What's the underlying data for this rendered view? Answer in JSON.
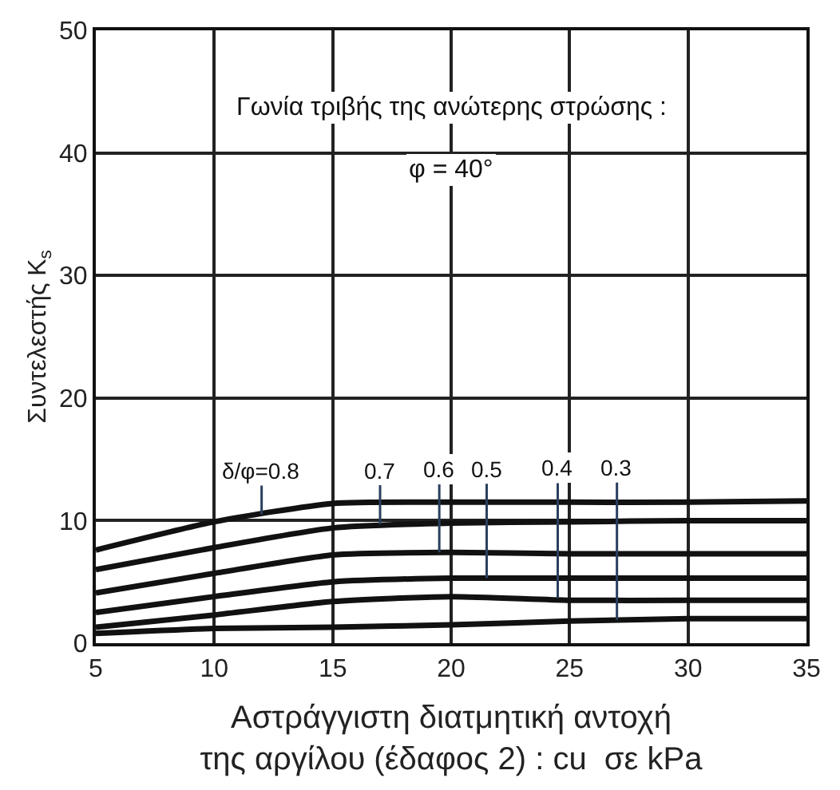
{
  "chart_data": {
    "type": "line",
    "xlabel": "Αστράγγιστη διατμητική αντοχή\nτης αργίλου (έδαφος 2) : cu  σε kPa",
    "ylabel": "Συντελεστής K$_{s}$",
    "x": [
      5,
      10,
      15,
      20,
      25,
      30,
      35
    ],
    "series": [
      {
        "color": "#111111",
        "values": [
          7.6,
          9.9,
          11.4,
          11.5,
          11.5,
          11.5,
          11.6
        ]
      },
      {
        "color": "#111111",
        "values": [
          6.0,
          7.8,
          9.4,
          9.8,
          9.9,
          10.0,
          10.0
        ]
      },
      {
        "color": "#111111",
        "values": [
          4.1,
          5.7,
          7.2,
          7.4,
          7.3,
          7.3,
          7.3
        ]
      },
      {
        "color": "#111111",
        "values": [
          2.5,
          3.8,
          5.0,
          5.3,
          5.3,
          5.3,
          5.3
        ]
      },
      {
        "color": "#111111",
        "values": [
          1.3,
          2.3,
          3.4,
          3.8,
          3.5,
          3.5,
          3.5
        ]
      },
      {
        "color": "#111111",
        "values": [
          0.8,
          1.2,
          1.3,
          1.5,
          1.8,
          2.0,
          2.0
        ]
      }
    ],
    "annotations": [
      "Γωνία τριβής της ανώτερης στρώσης :",
      "φ = 40°",
      {
        "text": "δ/φ=0.8",
        "x": 12,
        "y": 10.5
      },
      {
        "text": "0.7",
        "x": 17,
        "y": 9.7
      },
      {
        "text": "0.6",
        "x": 19.5,
        "y": 7.4
      },
      {
        "text": "0.5",
        "x": 21.5,
        "y": 5.3
      },
      {
        "text": "0.4",
        "x": 24.5,
        "y": 3.7
      },
      {
        "text": "0.3",
        "x": 27,
        "y": 1.9
      }
    ],
    "xlim": [
      5,
      35
    ],
    "xticks": [
      5,
      10,
      15,
      20,
      25,
      30,
      35
    ],
    "ylim": [
      0,
      50
    ],
    "yticks": [
      0,
      10,
      20,
      30,
      40,
      50
    ],
    "grid": true,
    "marker": "none",
    "line_style": "solid"
  }
}
